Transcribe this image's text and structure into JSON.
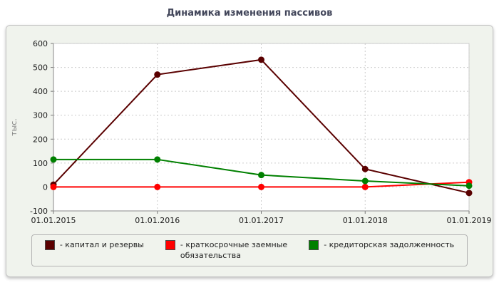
{
  "title": "Динамика изменения пассивов",
  "chart_data": {
    "type": "line",
    "x": [
      "01.01.2015",
      "01.01.2016",
      "01.01.2017",
      "01.01.2018",
      "01.01.2019"
    ],
    "series": [
      {
        "name": "капитал и резервы",
        "legend_label": "- капитал и резервы",
        "color": "#5a0000",
        "values": [
          10,
          470,
          532,
          75,
          -25
        ]
      },
      {
        "name": "краткосрочные заемные обязательства",
        "legend_label": "- краткосрочные заемные\nобязательства",
        "color": "#ff0000",
        "values": [
          0,
          0,
          0,
          0,
          20
        ]
      },
      {
        "name": "кредиторская задолженность",
        "legend_label": "- кредиторская задолженность",
        "color": "#008000",
        "values": [
          115,
          115,
          50,
          25,
          5
        ]
      }
    ],
    "ylabel": "тыс.",
    "ylim": [
      -100,
      600
    ],
    "ytick_step": 100,
    "grid": true,
    "legend_position": "bottom"
  }
}
